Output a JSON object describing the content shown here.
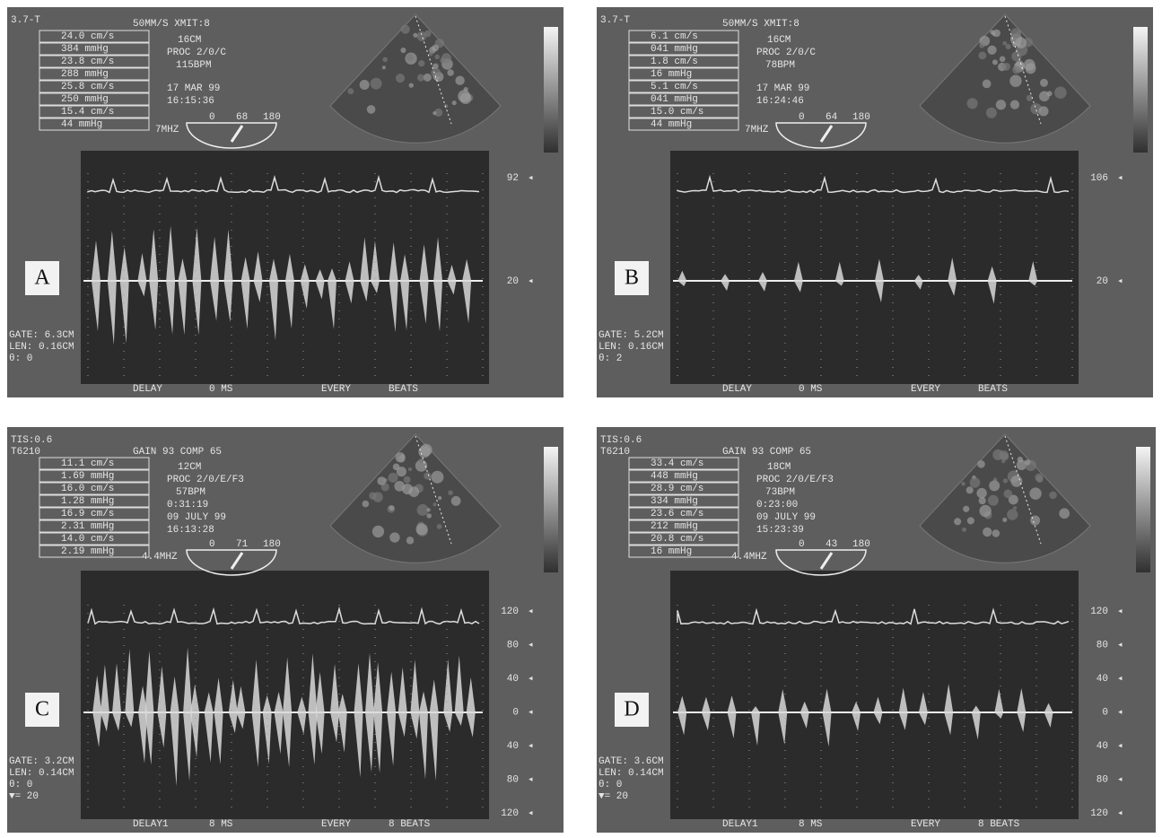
{
  "panels": [
    {
      "label": "A",
      "header": "3.7-T",
      "settings": "50MM/S XMIT:8",
      "depth": "16CM",
      "proc": "PROC 2/0/C",
      "bpm": "115BPM",
      "timer": null,
      "date": "17 MAR 99",
      "time": "16:15:36",
      "angle": [
        "0",
        "68",
        "180"
      ],
      "probe": "7MHZ",
      "table": [
        "24.0 cm/s",
        "384 mmHg",
        "23.8 cm/s",
        "288 mmHg",
        "25.8 cm/s",
        "250 mmHg",
        "15.4 cm/s",
        "44 mmHg"
      ],
      "scale": [
        "92",
        "20"
      ],
      "gate": [
        "GATE: 6.3CM",
        "LEN: 0.16CM",
        "θ: 0"
      ],
      "footer": [
        "DELAY",
        "0 MS",
        "EVERY",
        "BEATS"
      ]
    },
    {
      "label": "B",
      "header": "3.7-T",
      "settings": "50MM/S XMIT:8",
      "depth": "16CM",
      "proc": "PROC 2/0/C",
      "bpm": "78BPM",
      "timer": null,
      "date": "17 MAR 99",
      "time": "16:24:46",
      "angle": [
        "0",
        "64",
        "180"
      ],
      "probe": "7MHZ",
      "table": [
        "6.1 cm/s",
        "041 mmHg",
        "1.8 cm/s",
        "16 mmHg",
        "5.1 cm/s",
        "041 mmHg",
        "15.0 cm/s",
        "44 mmHg"
      ],
      "scale": [
        "106",
        "20"
      ],
      "gate": [
        "GATE: 5.2CM",
        "LEN: 0.16CM",
        "θ: 2"
      ],
      "footer": [
        "DELAY",
        "0 MS",
        "EVERY",
        "BEATS"
      ]
    },
    {
      "label": "C",
      "header": "TIS:0.6",
      "header2": "T6210",
      "settings": "GAIN 93 COMP 65",
      "depth": "12CM",
      "proc": "PROC 2/0/E/F3",
      "bpm": "57BPM",
      "timer": "0:31:19",
      "date": "09 JULY 99",
      "time": "16:13:28",
      "angle": [
        "0",
        "71",
        "180"
      ],
      "probe": "4.4MHZ",
      "table": [
        "11.1 cm/s",
        "1.69 mmHg",
        "16.0 cm/s",
        "1.28 mmHg",
        "16.9 cm/s",
        "2.31 mmHg",
        "14.0 cm/s",
        "2.19 mmHg"
      ],
      "scale": [
        "120",
        "80",
        "40",
        "0",
        "40",
        "80",
        "120"
      ],
      "gate": [
        "GATE: 3.2CM",
        "LEN: 0.14CM",
        "θ: 0",
        "▼= 20"
      ],
      "footer": [
        "DELAY1",
        "8 MS",
        "EVERY",
        "8 BEATS"
      ]
    },
    {
      "label": "D",
      "header": "TIS:0.6",
      "header2": "T6210",
      "settings": "GAIN 93 COMP 65",
      "depth": "18CM",
      "proc": "PROC 2/0/E/F3",
      "bpm": "73BPM",
      "timer": "0:23:00",
      "date": "09 JULY 99",
      "time": "15:23:39",
      "angle": [
        "0",
        "43",
        "180"
      ],
      "probe": "4.4MHZ",
      "table": [
        "33.4 cm/s",
        "448 mmHg",
        "28.9 cm/s",
        "334 mmHg",
        "23.6 cm/s",
        "212 mmHg",
        "20.8 cm/s",
        "16 mmHg"
      ],
      "scale": [
        "120",
        "80",
        "40",
        "0",
        "40",
        "80",
        "120"
      ],
      "gate": [
        "GATE: 3.6CM",
        "LEN: 0.14CM",
        "θ: 0",
        "▼= 20"
      ],
      "footer": [
        "DELAY1",
        "8 MS",
        "EVERY",
        "8 BEATS"
      ]
    }
  ]
}
